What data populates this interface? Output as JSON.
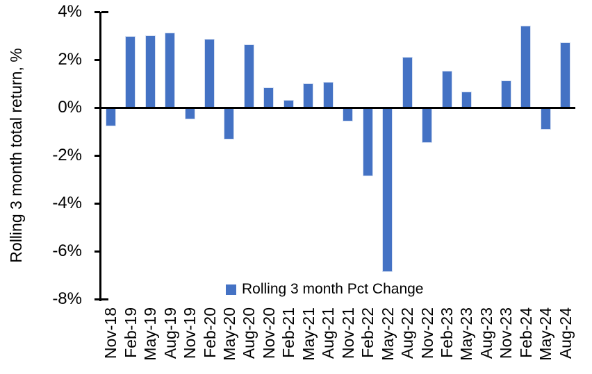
{
  "chart_data": {
    "type": "bar",
    "title": "",
    "xlabel": "",
    "ylabel": "Rolling 3 month total return, %",
    "legend": "Rolling 3 month Pct Change",
    "legend_position": "bottom-center",
    "grid": false,
    "bar_color": "#4472C4",
    "axis_color": "#000000",
    "ylim": [
      -8,
      4
    ],
    "y_ticks": [
      "4%",
      "2%",
      "0%",
      "-2%",
      "-4%",
      "-6%",
      "-8%"
    ],
    "y_tick_values": [
      4,
      2,
      0,
      -2,
      -4,
      -6,
      -8
    ],
    "categories": [
      "Nov-18",
      "Feb-19",
      "May-19",
      "Aug-19",
      "Nov-19",
      "Feb-20",
      "May-20",
      "Aug-20",
      "Nov-20",
      "Feb-21",
      "May-21",
      "Aug-21",
      "Nov-21",
      "Feb-22",
      "May-22",
      "Aug-22",
      "Nov-22",
      "Feb-23",
      "May-23",
      "Aug-23",
      "Nov-23",
      "Feb-24",
      "May-24",
      "Aug-24"
    ],
    "values": [
      -0.75,
      2.95,
      3.0,
      3.1,
      -0.45,
      2.85,
      -1.3,
      2.6,
      0.8,
      0.3,
      1.0,
      1.05,
      -0.55,
      -2.85,
      -6.85,
      2.1,
      -1.45,
      1.5,
      0.65,
      0,
      1.1,
      3.4,
      -0.9,
      2.7
    ]
  }
}
